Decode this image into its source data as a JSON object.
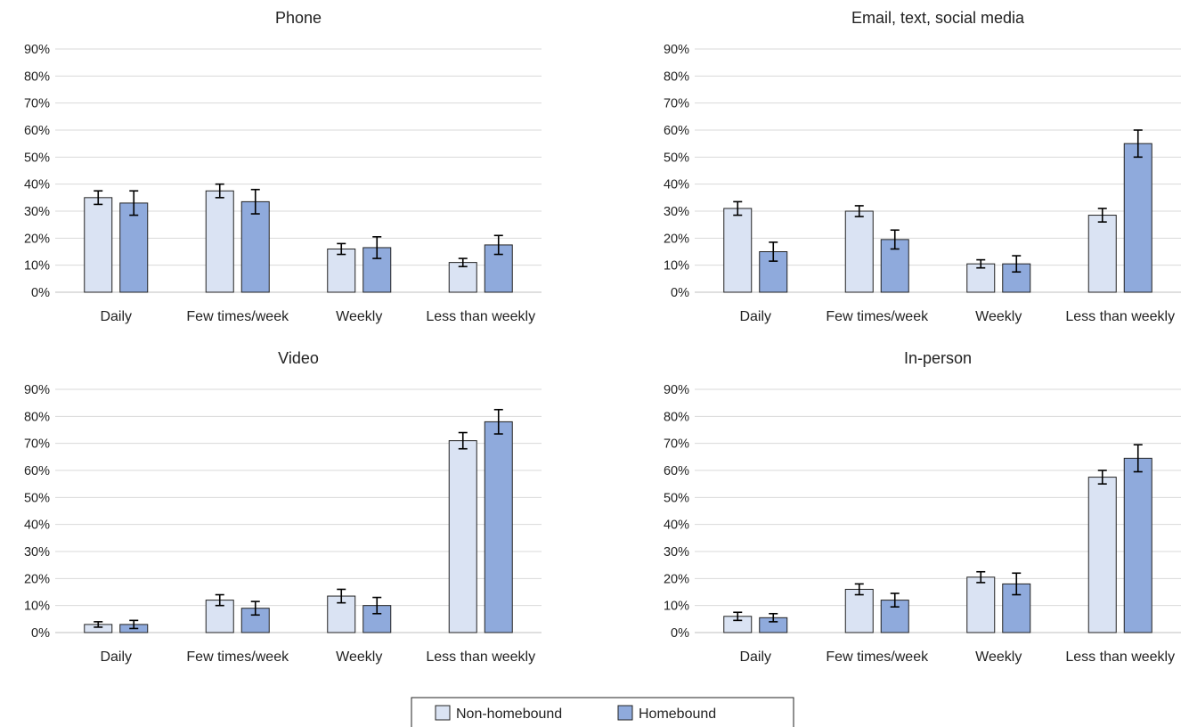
{
  "chart_data": [
    {
      "type": "bar",
      "title": "Phone",
      "categories": [
        "Daily",
        "Few times/week",
        "Weekly",
        "Less than weekly"
      ],
      "ylim": [
        0,
        90
      ],
      "yticks": [
        "0%",
        "10%",
        "20%",
        "30%",
        "40%",
        "50%",
        "60%",
        "70%",
        "80%",
        "90%"
      ],
      "grid": true,
      "series": [
        {
          "name": "Non-homebound",
          "values": [
            35,
            37.5,
            16,
            11
          ],
          "errors": [
            2.5,
            2.5,
            2,
            1.5
          ]
        },
        {
          "name": "Homebound",
          "values": [
            33,
            33.5,
            16.5,
            17.5
          ],
          "errors": [
            4.5,
            4.5,
            4,
            3.5
          ]
        }
      ]
    },
    {
      "type": "bar",
      "title": "Email, text, social media",
      "categories": [
        "Daily",
        "Few times/week",
        "Weekly",
        "Less than weekly"
      ],
      "ylim": [
        0,
        90
      ],
      "yticks": [
        "0%",
        "10%",
        "20%",
        "30%",
        "40%",
        "50%",
        "60%",
        "70%",
        "80%",
        "90%"
      ],
      "grid": true,
      "series": [
        {
          "name": "Non-homebound",
          "values": [
            31,
            30,
            10.5,
            28.5
          ],
          "errors": [
            2.5,
            2,
            1.5,
            2.5
          ]
        },
        {
          "name": "Homebound",
          "values": [
            15,
            19.5,
            10.5,
            55
          ],
          "errors": [
            3.5,
            3.5,
            3,
            5
          ]
        }
      ]
    },
    {
      "type": "bar",
      "title": "Video",
      "categories": [
        "Daily",
        "Few times/week",
        "Weekly",
        "Less than weekly"
      ],
      "ylim": [
        0,
        90
      ],
      "yticks": [
        "0%",
        "10%",
        "20%",
        "30%",
        "40%",
        "50%",
        "60%",
        "70%",
        "80%",
        "90%"
      ],
      "grid": true,
      "series": [
        {
          "name": "Non-homebound",
          "values": [
            3,
            12,
            13.5,
            71
          ],
          "errors": [
            1,
            2,
            2.5,
            3
          ]
        },
        {
          "name": "Homebound",
          "values": [
            3,
            9,
            10,
            78
          ],
          "errors": [
            1.5,
            2.5,
            3,
            4.5
          ]
        }
      ]
    },
    {
      "type": "bar",
      "title": "In-person",
      "categories": [
        "Daily",
        "Few times/week",
        "Weekly",
        "Less than weekly"
      ],
      "ylim": [
        0,
        90
      ],
      "yticks": [
        "0%",
        "10%",
        "20%",
        "30%",
        "40%",
        "50%",
        "60%",
        "70%",
        "80%",
        "90%"
      ],
      "grid": true,
      "series": [
        {
          "name": "Non-homebound",
          "values": [
            6,
            16,
            20.5,
            57.5
          ],
          "errors": [
            1.5,
            2,
            2,
            2.5
          ]
        },
        {
          "name": "Homebound",
          "values": [
            5.5,
            12,
            18,
            64.5
          ],
          "errors": [
            1.5,
            2.5,
            4,
            5
          ]
        }
      ]
    }
  ],
  "legend": {
    "placement": "bottom-center",
    "items": [
      {
        "label": "Non-homebound",
        "color": "#dae3f3"
      },
      {
        "label": "Homebound",
        "color": "#8faadc"
      }
    ]
  },
  "colors": {
    "series": [
      "#dae3f3",
      "#8faadc"
    ],
    "bar_stroke": "#222222",
    "grid": "#d9d9d9",
    "error_bar": "#000000"
  }
}
